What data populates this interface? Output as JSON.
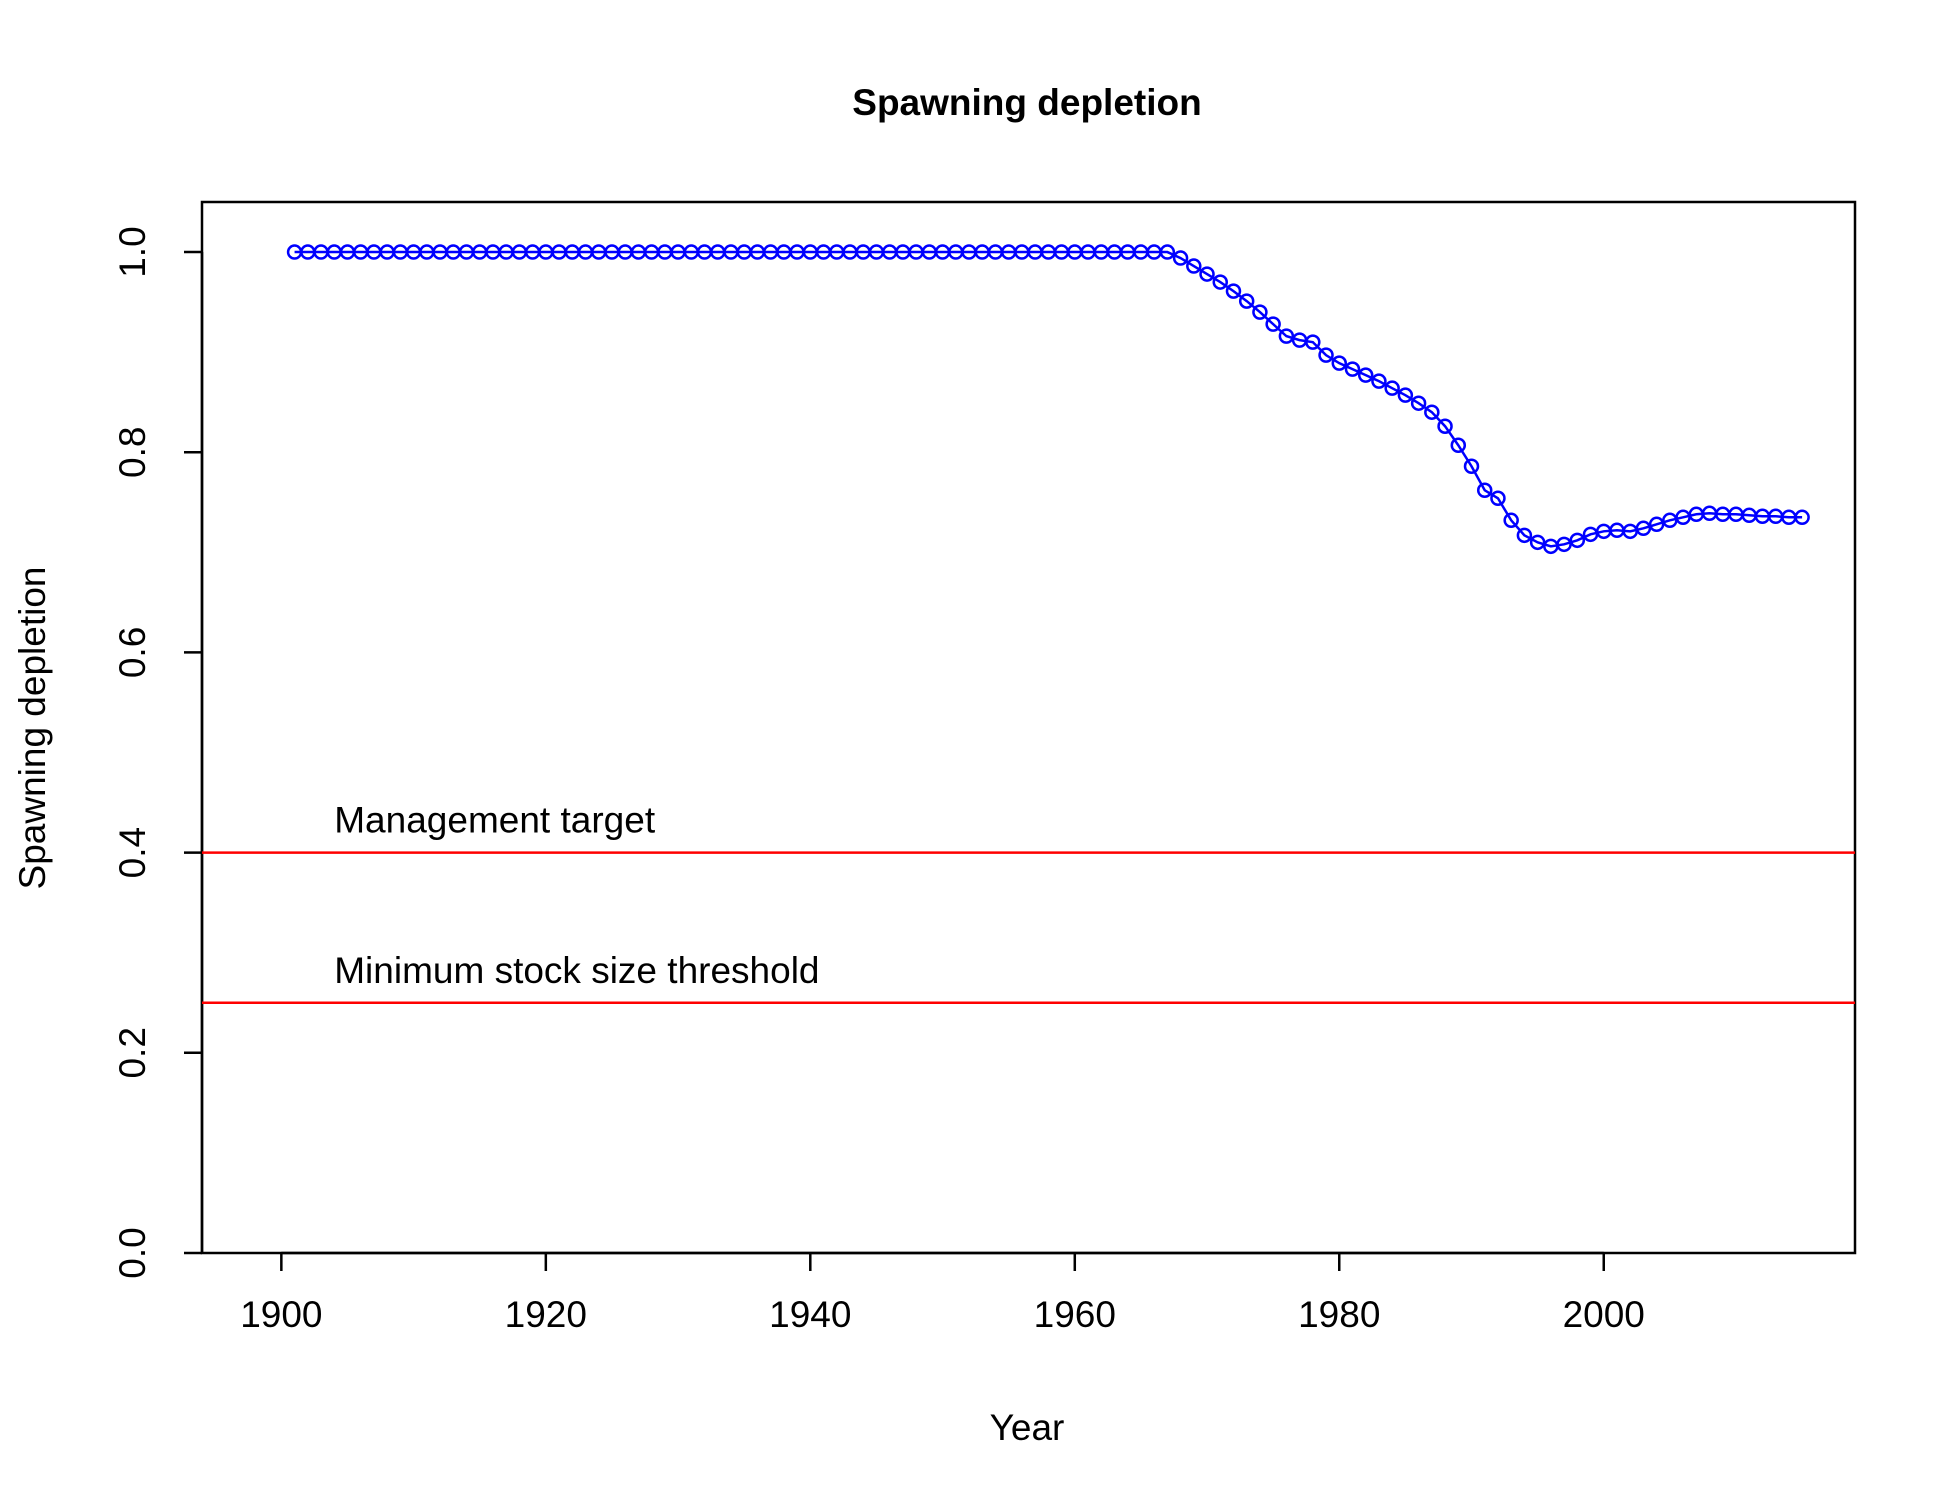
{
  "chart_data": {
    "type": "line",
    "title": "Spawning depletion",
    "xlabel": "Year",
    "ylabel": "Spawning depletion",
    "xlim": [
      1894,
      2019
    ],
    "ylim": [
      0,
      1.05
    ],
    "x_ticks": [
      1900,
      1920,
      1940,
      1960,
      1980,
      2000
    ],
    "x_tick_labels": [
      "1900",
      "1920",
      "1940",
      "1960",
      "1980",
      "2000"
    ],
    "y_ticks": [
      0,
      0.2,
      0.4,
      0.6,
      0.8,
      1.0
    ],
    "y_tick_labels": [
      "0.0",
      "0.2",
      "0.4",
      "0.6",
      "0.8",
      "1.0"
    ],
    "grid": false,
    "colors": {
      "series": "#0000ff",
      "reference": "#ff0000",
      "axis": "#000000"
    },
    "series": [
      {
        "marker": "open-circle",
        "x": [
          1901,
          1902,
          1903,
          1904,
          1905,
          1906,
          1907,
          1908,
          1909,
          1910,
          1911,
          1912,
          1913,
          1914,
          1915,
          1916,
          1917,
          1918,
          1919,
          1920,
          1921,
          1922,
          1923,
          1924,
          1925,
          1926,
          1927,
          1928,
          1929,
          1930,
          1931,
          1932,
          1933,
          1934,
          1935,
          1936,
          1937,
          1938,
          1939,
          1940,
          1941,
          1942,
          1943,
          1944,
          1945,
          1946,
          1947,
          1948,
          1949,
          1950,
          1951,
          1952,
          1953,
          1954,
          1955,
          1956,
          1957,
          1958,
          1959,
          1960,
          1961,
          1962,
          1963,
          1964,
          1965,
          1966,
          1967,
          1968,
          1969,
          1970,
          1971,
          1972,
          1973,
          1974,
          1975,
          1976,
          1977,
          1978,
          1979,
          1980,
          1981,
          1982,
          1983,
          1984,
          1985,
          1986,
          1987,
          1988,
          1989,
          1990,
          1991,
          1992,
          1993,
          1994,
          1995,
          1996,
          1997,
          1998,
          1999,
          2000,
          2001,
          2002,
          2003,
          2004,
          2005,
          2006,
          2007,
          2008,
          2009,
          2010,
          2011,
          2012,
          2013,
          2014,
          2015
        ],
        "y": [
          1,
          1,
          1,
          1,
          1,
          1,
          1,
          1,
          1,
          1,
          1,
          1,
          1,
          1,
          1,
          1,
          1,
          1,
          1,
          1,
          1,
          1,
          1,
          1,
          1,
          1,
          1,
          1,
          1,
          1,
          1,
          1,
          1,
          1,
          1,
          1,
          1,
          1,
          1,
          1,
          1,
          1,
          1,
          1,
          1,
          1,
          1,
          1,
          1,
          1,
          1,
          1,
          1,
          1,
          1,
          1,
          1,
          1,
          1,
          1,
          1,
          1,
          1,
          1,
          1,
          1,
          1,
          0.994,
          0.986,
          0.978,
          0.97,
          0.961,
          0.951,
          0.94,
          0.928,
          0.916,
          0.912,
          0.91,
          0.897,
          0.889,
          0.883,
          0.877,
          0.871,
          0.864,
          0.857,
          0.849,
          0.84,
          0.826,
          0.807,
          0.786,
          0.762,
          0.754,
          0.732,
          0.717,
          0.71,
          0.706,
          0.708,
          0.712,
          0.718,
          0.721,
          0.722,
          0.721,
          0.724,
          0.728,
          0.732,
          0.735,
          0.738,
          0.739,
          0.738,
          0.738,
          0.737,
          0.736,
          0.736,
          0.735,
          0.735
        ]
      }
    ],
    "reference_lines": [
      {
        "y": 0.4,
        "label": "Management target",
        "label_x": 1904
      },
      {
        "y": 0.25,
        "label": "Minimum stock size threshold",
        "label_x": 1904
      }
    ]
  }
}
